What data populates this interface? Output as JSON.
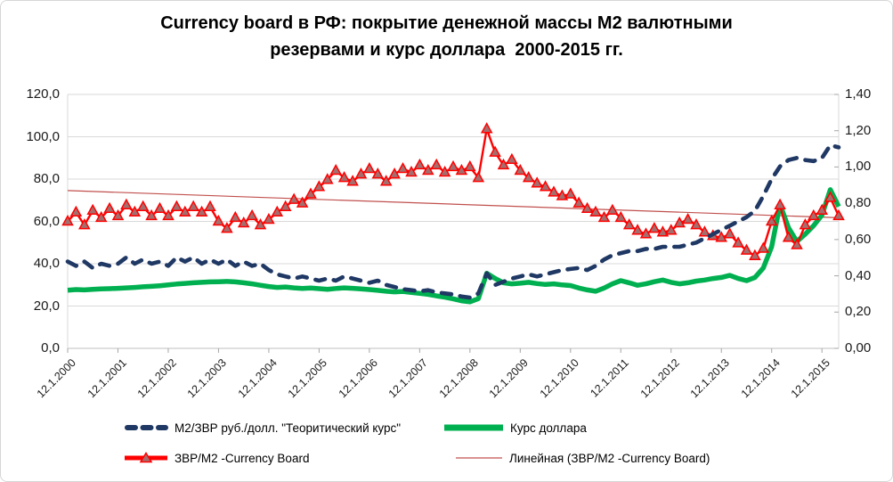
{
  "title": {
    "line1": "Currency board в РФ: покрытие денежной массы М2 валютными",
    "line2": "резервами и курс доллара  2000-2015 гг."
  },
  "legend": {
    "items": [
      {
        "label": "М2/ЗВР руб./долл. \"Теоритический курс\"",
        "color": "#1F3864",
        "style": "dashed-line"
      },
      {
        "label": "Курс доллара",
        "color": "#00B050",
        "style": "solid-thick-line"
      },
      {
        "label": "ЗВР/М2 -Currency Board",
        "color": "#FF0000",
        "marker_fill": "#A56E6E",
        "style": "line-with-triangle-markers"
      },
      {
        "label": "Линейная (ЗВР/М2 -Currency Board)",
        "color": "#C0504D",
        "style": "thin-trend-line"
      }
    ]
  },
  "chart_data": {
    "type": "line",
    "title": "Currency board в РФ: покрытие денежной массы М2 валютными резервами и курс доллара 2000-2015 гг.",
    "grid": "horizontal-major",
    "grid_color": "#D9D9D9",
    "axis_line_color": "#BFBFBF",
    "tick_color": "#A6A6A6",
    "legend_position": "bottom",
    "x_tick_labels": [
      "12.1.2000",
      "12.1.2001",
      "12.1.2002",
      "12.1.2003",
      "12.1.2004",
      "12.1.2005",
      "12.1.2006",
      "12.1.2007",
      "12.1.2008",
      "12.1.2009",
      "12.1.2010",
      "12.1.2011",
      "12.1.2012",
      "12.1.2013",
      "12.1.2014",
      "12.1.2015"
    ],
    "x_range": [
      0,
      15.333
    ],
    "x_step_years": 0.16667,
    "left_axis": {
      "range": [
        0,
        120
      ],
      "step": 20,
      "tick_labels": [
        "120,0",
        "100,0",
        "80,0",
        "60,0",
        "40,0",
        "20,0",
        "0,0"
      ]
    },
    "right_axis": {
      "range": [
        0,
        1.4
      ],
      "step": 0.2,
      "tick_labels": [
        "1,40",
        "1,20",
        "1,00",
        "0,80",
        "0,60",
        "0,40",
        "0,20",
        "0,00"
      ]
    },
    "series": [
      {
        "name": "М2/ЗВР руб./долл. \"Теоритический курс\"",
        "axis": "left",
        "style": "dashed",
        "color": "#1F3864",
        "width": 4.6,
        "z": 4,
        "values": [
          41,
          39,
          41,
          38,
          40,
          39,
          40,
          43,
          40,
          42,
          40,
          41,
          39,
          43,
          41,
          43,
          40,
          42,
          40,
          42,
          39,
          41,
          39,
          40,
          37,
          35,
          34,
          33,
          34,
          33,
          32,
          33,
          32,
          34,
          33,
          32,
          31,
          32,
          30,
          29,
          28,
          27.5,
          27,
          27.5,
          26.5,
          26,
          25.5,
          24.5,
          24,
          26,
          35.5,
          30,
          31.5,
          33,
          34,
          35,
          34,
          35,
          36,
          37,
          37.5,
          38,
          37,
          39,
          42,
          44,
          45,
          46,
          46,
          47,
          47,
          48,
          48,
          48,
          49,
          50,
          52,
          54,
          56,
          58,
          60,
          62,
          65,
          72,
          80,
          86,
          89,
          90,
          89,
          88.5,
          90,
          96,
          95
        ]
      },
      {
        "name": "Курс доллара",
        "axis": "left",
        "style": "solid",
        "color": "#00B050",
        "width": 5.5,
        "z": 2,
        "values": [
          27.5,
          27.8,
          27.6,
          27.9,
          28.1,
          28.2,
          28.4,
          28.6,
          28.8,
          29.1,
          29.3,
          29.6,
          30,
          30.4,
          30.7,
          31,
          31.2,
          31.4,
          31.5,
          31.6,
          31.4,
          31,
          30.5,
          29.8,
          29.2,
          28.8,
          29,
          28.6,
          28.3,
          28.5,
          28.2,
          27.9,
          28.3,
          28.6,
          28.4,
          28.1,
          27.8,
          27.4,
          27,
          26.7,
          26.9,
          26.4,
          26,
          25.5,
          24.8,
          24.2,
          23.4,
          22.5,
          22,
          23.5,
          35.5,
          33,
          31,
          30.5,
          30.8,
          31.2,
          30.6,
          30.2,
          30.5,
          30,
          29.7,
          28.5,
          27.6,
          27,
          28.5,
          30.5,
          32,
          31,
          29.8,
          30.5,
          31.5,
          32.3,
          31.2,
          30.5,
          31,
          31.8,
          32.3,
          33,
          33.5,
          34.5,
          33,
          32,
          33.5,
          38,
          48,
          68,
          57,
          50.5,
          54,
          58,
          63,
          75,
          67
        ]
      },
      {
        "name": "ЗВР/М2 -Currency Board",
        "axis": "right",
        "style": "triangle-markers",
        "color": "#FF0000",
        "marker_fill": "#A56E6E",
        "width": 2.4,
        "z": 3,
        "values": [
          0.7,
          0.75,
          0.68,
          0.76,
          0.72,
          0.77,
          0.73,
          0.79,
          0.75,
          0.78,
          0.73,
          0.77,
          0.73,
          0.78,
          0.75,
          0.78,
          0.75,
          0.78,
          0.7,
          0.66,
          0.72,
          0.69,
          0.73,
          0.68,
          0.71,
          0.75,
          0.78,
          0.82,
          0.8,
          0.85,
          0.89,
          0.93,
          0.98,
          0.94,
          0.92,
          0.96,
          0.99,
          0.96,
          0.92,
          0.96,
          0.99,
          0.97,
          1.01,
          0.98,
          1.01,
          0.97,
          1.0,
          0.98,
          1.0,
          0.94,
          1.21,
          1.08,
          1.01,
          1.04,
          0.98,
          0.94,
          0.91,
          0.89,
          0.86,
          0.84,
          0.85,
          0.8,
          0.77,
          0.75,
          0.72,
          0.76,
          0.72,
          0.68,
          0.65,
          0.63,
          0.66,
          0.64,
          0.65,
          0.69,
          0.71,
          0.68,
          0.64,
          0.62,
          0.61,
          0.63,
          0.58,
          0.54,
          0.51,
          0.55,
          0.7,
          0.79,
          0.61,
          0.57,
          0.68,
          0.73,
          0.76,
          0.83,
          0.73
        ]
      },
      {
        "name": "Линейная (ЗВР/М2 -Currency Board)",
        "axis": "right",
        "style": "trendline",
        "color": "#C0504D",
        "width": 1.2,
        "z": 1,
        "x": [
          0,
          15.333
        ],
        "values": [
          0.87,
          0.72
        ]
      }
    ]
  }
}
